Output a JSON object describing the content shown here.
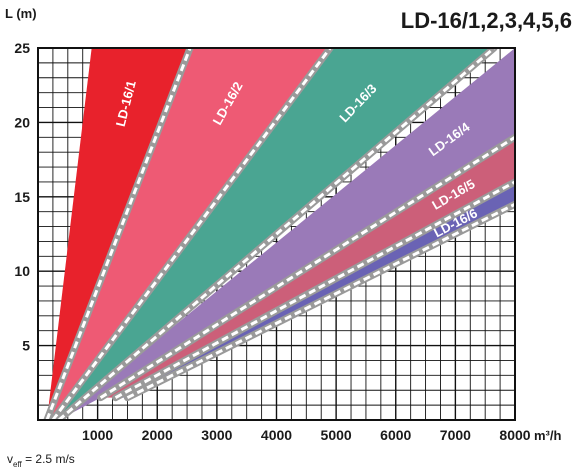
{
  "chart_data": {
    "type": "area",
    "title": "LD-16/1,2,3,4,5,6",
    "ylabel": "L (m)",
    "xlabel": "m³/h",
    "note_symbol": "v",
    "note_subscript": "eff",
    "note_rest": " = 2.5 m/s",
    "xlim": [
      0,
      8000
    ],
    "ylim": [
      0,
      25
    ],
    "x_ticks": [
      1000,
      2000,
      3000,
      4000,
      5000,
      6000,
      7000,
      8000
    ],
    "x_tick_labels": [
      "1000",
      "2000",
      "3000",
      "4000",
      "5000",
      "6000",
      "7000",
      "8000"
    ],
    "y_ticks": [
      5,
      10,
      15,
      20,
      25
    ],
    "y_tick_labels": [
      "5",
      "10",
      "15",
      "20",
      "25"
    ],
    "grid": true,
    "series": [
      {
        "name": "LD-16/1",
        "color": "#e8222c",
        "lower": [
          [
            150,
            0
          ],
          [
            2550,
            25
          ]
        ],
        "upper": [
          [
            150,
            0
          ],
          [
            900,
            25
          ]
        ]
      },
      {
        "name": "LD-16/2",
        "color": "#ee5a74",
        "lower": [
          [
            250,
            0
          ],
          [
            4900,
            25
          ]
        ],
        "upper": [
          [
            150,
            0
          ],
          [
            2550,
            25
          ]
        ]
      },
      {
        "name": "LD-16/3",
        "color": "#4aa592",
        "lower": [
          [
            350,
            0
          ],
          [
            7650,
            25
          ]
        ],
        "upper": [
          [
            250,
            0
          ],
          [
            4900,
            25
          ]
        ]
      },
      {
        "name": "LD-16/4",
        "color": "#9a7ab8",
        "lower": [
          [
            1050,
            1.5
          ],
          [
            8000,
            19
          ]
        ],
        "upper": [
          [
            350,
            0
          ],
          [
            8000,
            25
          ]
        ]
      },
      {
        "name": "LD-16/5",
        "color": "#cc5f79",
        "lower": [
          [
            1300,
            1.5
          ],
          [
            8000,
            16
          ]
        ],
        "upper": [
          [
            1050,
            1.5
          ],
          [
            8000,
            19
          ]
        ]
      },
      {
        "name": "LD-16/6",
        "color": "#6a63b4",
        "lower": [
          [
            1500,
            1.5
          ],
          [
            8000,
            14.5
          ]
        ],
        "upper": [
          [
            1300,
            1.5
          ],
          [
            8000,
            16
          ]
        ]
      }
    ]
  }
}
